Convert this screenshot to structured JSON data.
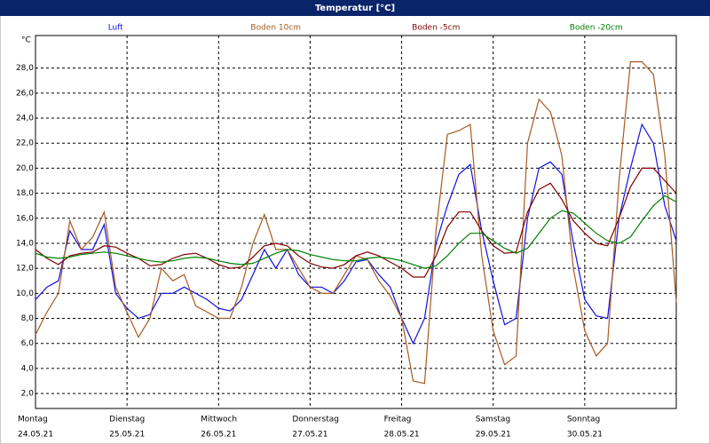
{
  "chart_data": {
    "type": "line",
    "title": "Temperatur [°C]",
    "y_unit": "°C",
    "x": [
      0,
      3,
      6,
      9,
      12,
      15,
      18,
      21,
      24,
      27,
      30,
      33,
      36,
      39,
      42,
      45,
      48,
      51,
      54,
      57,
      60,
      63,
      66,
      69,
      72,
      75,
      78,
      81,
      84,
      87,
      90,
      93,
      96,
      99,
      102,
      105,
      108,
      111,
      114,
      117,
      120,
      123,
      126,
      129,
      132,
      135,
      138,
      141,
      144,
      147,
      150,
      153,
      156,
      159,
      162,
      165,
      168
    ],
    "xlim": [
      0,
      168
    ],
    "xticks": [
      {
        "value": 0,
        "label": "Montag",
        "date": "24.05.21"
      },
      {
        "value": 24,
        "label": "Dienstag",
        "date": "25.05.21"
      },
      {
        "value": 48,
        "label": "Mittwoch",
        "date": "26.05.21"
      },
      {
        "value": 72,
        "label": "Donnerstag",
        "date": "27.05.21"
      },
      {
        "value": 96,
        "label": "Freitag",
        "date": "28.05.21"
      },
      {
        "value": 120,
        "label": "Samstag",
        "date": "29.05.21"
      },
      {
        "value": 144,
        "label": "Sonntag",
        "date": "30.05.21"
      }
    ],
    "ylim": [
      0.8,
      30.6
    ],
    "yticks": [
      {
        "value": 2,
        "label": "2,0"
      },
      {
        "value": 4,
        "label": "4,0"
      },
      {
        "value": 6,
        "label": "6,0"
      },
      {
        "value": 8,
        "label": "8,0"
      },
      {
        "value": 10,
        "label": "10,0"
      },
      {
        "value": 12,
        "label": "12,0"
      },
      {
        "value": 14,
        "label": "14,0"
      },
      {
        "value": 16,
        "label": "16,0"
      },
      {
        "value": 18,
        "label": "18,0"
      },
      {
        "value": 20,
        "label": "20,0"
      },
      {
        "value": 22,
        "label": "22,0"
      },
      {
        "value": 24,
        "label": "24,0"
      },
      {
        "value": 26,
        "label": "26,0"
      },
      {
        "value": 28,
        "label": "28,0"
      }
    ],
    "grid": true,
    "series": [
      {
        "name": "Luft",
        "color": "#1010e0",
        "values": [
          9.5,
          10.5,
          11,
          15,
          13.5,
          13.5,
          15.5,
          10,
          8.8,
          8,
          8.3,
          10,
          10,
          10.5,
          10,
          9.5,
          8.8,
          8.6,
          9.5,
          11.5,
          13.5,
          12,
          13.5,
          11.5,
          10.5,
          10.5,
          10,
          11,
          12.5,
          12.7,
          11.5,
          10.5,
          8,
          6,
          8,
          14,
          17,
          19.5,
          20.3,
          15,
          11,
          7.5,
          8,
          16,
          20,
          20.5,
          19.5,
          14,
          9.5,
          8.2,
          8,
          16,
          20,
          23.5,
          22,
          17,
          14.2
        ]
      },
      {
        "name": "Boden 10cm",
        "color": "#a85a20",
        "values": [
          6.7,
          8.5,
          10,
          15.8,
          13.5,
          14.5,
          16.5,
          10.5,
          8.5,
          6.5,
          8,
          12,
          11,
          11.5,
          9,
          8.5,
          8,
          8,
          10.5,
          14,
          16.3,
          13.5,
          13.5,
          12,
          10.5,
          10,
          10,
          11.5,
          13,
          12.7,
          11,
          9.8,
          8,
          3,
          2.8,
          15,
          22.7,
          23,
          23.5,
          13,
          7,
          4.3,
          5,
          22,
          25.5,
          24.5,
          21,
          12,
          7,
          5,
          6,
          19,
          28.5,
          28.5,
          27.5,
          21,
          9.3
        ]
      },
      {
        "name": "Boden -5cm",
        "color": "#800000",
        "values": [
          13.5,
          12.8,
          12.3,
          13,
          13.2,
          13.3,
          13.8,
          13.7,
          13.2,
          12.8,
          12.2,
          12.3,
          12.8,
          13.1,
          13.2,
          12.8,
          12.3,
          12,
          12.1,
          12.9,
          13.8,
          14,
          13.8,
          13,
          12.4,
          12.1,
          12,
          12.3,
          13,
          13.3,
          13,
          12.5,
          12,
          11.3,
          11.3,
          13,
          15.3,
          16.5,
          16.5,
          15,
          13.8,
          13.2,
          13.3,
          16.5,
          18.3,
          18.8,
          17.5,
          15.8,
          14.8,
          14,
          13.8,
          16,
          18.5,
          20,
          20,
          19,
          18
        ]
      },
      {
        "name": "Boden -20cm",
        "color": "#008000",
        "values": [
          13.2,
          12.9,
          12.8,
          12.9,
          13.1,
          13.2,
          13.3,
          13.2,
          13.0,
          12.8,
          12.6,
          12.5,
          12.6,
          12.8,
          12.9,
          12.8,
          12.6,
          12.4,
          12.3,
          12.4,
          12.8,
          13.2,
          13.5,
          13.4,
          13.1,
          12.9,
          12.7,
          12.6,
          12.6,
          12.8,
          12.9,
          12.8,
          12.6,
          12.3,
          12.0,
          12.2,
          13.0,
          14.0,
          14.8,
          14.8,
          14.2,
          13.6,
          13.2,
          13.6,
          14.8,
          16.0,
          16.6,
          16.4,
          15.6,
          14.8,
          14.2,
          14.0,
          14.5,
          15.8,
          17.0,
          17.8,
          17.3
        ]
      }
    ]
  }
}
